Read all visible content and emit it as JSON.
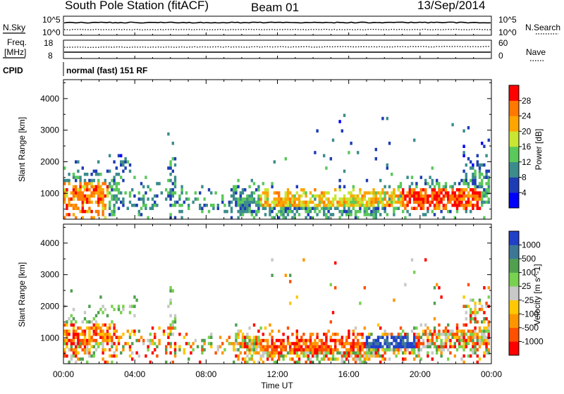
{
  "header": {
    "station": "South Pole Station (fitACF)",
    "beam": "Beam 01",
    "date": "13/Sep/2014"
  },
  "noise_panel": {
    "left_label": "N.Sky",
    "right_label": "N.Search",
    "left_ticks": [
      "10^5",
      "10^0"
    ],
    "right_ticks": [
      "10^5",
      "10^0"
    ]
  },
  "freq_panel": {
    "left_label_line1": "Freq.",
    "left_label_line2": "[MHz]",
    "left_ticks": [
      "18",
      "8"
    ],
    "right_label": "Nave",
    "right_ticks": [
      "60",
      "0"
    ]
  },
  "cpid": {
    "label": "CPID",
    "text": "normal (fast) 151 RF"
  },
  "chart_data": [
    {
      "type": "heatmap",
      "title": "",
      "quantity": "Power",
      "xlabel": "",
      "ylabel": "Slant Range [km]",
      "x_range_hours": [
        0,
        24
      ],
      "x_tick_labels": [
        "00:00",
        "04:00",
        "08:00",
        "12:00",
        "16:00",
        "20:00",
        "00:00"
      ],
      "ylim": [
        180,
        4600
      ],
      "y_ticks": [
        1000,
        2000,
        3000,
        4000
      ],
      "y_tick_labels": [
        "1000",
        "2000",
        "3000",
        "4000"
      ],
      "colorbar": {
        "label": "Power [dB]",
        "ticks": [
          "4",
          "8",
          "12",
          "16",
          "20",
          "24",
          "28"
        ],
        "colors": [
          "#0000ff",
          "#1e3cb4",
          "#3c8c8c",
          "#5ac85a",
          "#c8e632",
          "#ffa500",
          "#ff7800",
          "#ff0000"
        ]
      }
    },
    {
      "type": "heatmap",
      "title": "",
      "quantity": "Velocity",
      "xlabel": "Time UT",
      "ylabel": "Slant Range [km]",
      "x_range_hours": [
        0,
        24
      ],
      "x_tick_labels": [
        "00:00",
        "04:00",
        "08:00",
        "12:00",
        "16:00",
        "20:00",
        "00:00"
      ],
      "ylim": [
        180,
        4600
      ],
      "y_ticks": [
        1000,
        2000,
        3000,
        4000
      ],
      "y_tick_labels": [
        "1000",
        "2000",
        "3000",
        "4000"
      ],
      "colorbar": {
        "label": "Velocity [m s^-1]",
        "ticks": [
          "1000",
          "500",
          "100",
          "25",
          "-25",
          "-100",
          "-500",
          "-1000"
        ],
        "colors": [
          "#2040c8",
          "#3c7896",
          "#50a050",
          "#78d250",
          "#c8c8c8",
          "#ffc800",
          "#ff9600",
          "#ff5000",
          "#ff0000"
        ]
      }
    }
  ]
}
